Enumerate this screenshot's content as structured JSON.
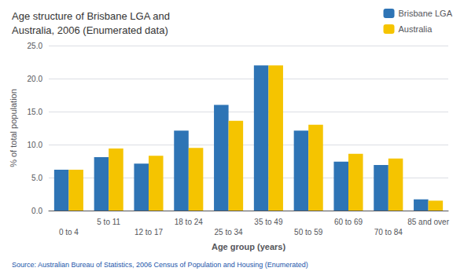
{
  "chart_data": {
    "type": "bar",
    "title": "Age structure of Brisbane LGA and\nAustralia, 2006 (Enumerated data)",
    "x_label": "Age group (years)",
    "y_label": "% of total population",
    "source": "Source: Australian Bureau of Statistics, 2006 Census of Population and Housing (Enumerated)",
    "categories": [
      "0 to 4",
      "5 to 11",
      "12 to 17",
      "18 to 24",
      "25 to 34",
      "35 to 49",
      "50 to 59",
      "60 to 69",
      "70 to 84",
      "85 and over"
    ],
    "series": [
      {
        "name": "Brisbane LGA",
        "color": "#2E74B5",
        "values": [
          6.2,
          8.1,
          7.1,
          12.1,
          16.0,
          22.0,
          12.1,
          7.4,
          6.9,
          1.7
        ]
      },
      {
        "name": "Australia",
        "color": "#F5C400",
        "values": [
          6.2,
          9.4,
          8.3,
          9.5,
          13.6,
          22.0,
          13.0,
          8.6,
          7.9,
          1.5
        ]
      }
    ],
    "ylim": [
      0,
      25
    ],
    "yticks": [
      {
        "value": 0,
        "label": "0.0"
      },
      {
        "value": 5,
        "label": "5.0"
      },
      {
        "value": 10,
        "label": "10.0"
      },
      {
        "value": 15,
        "label": "15.0"
      },
      {
        "value": 20,
        "label": "20.0"
      },
      {
        "value": 25,
        "label": "25.0"
      }
    ],
    "grid": true,
    "legend": "upper right"
  }
}
